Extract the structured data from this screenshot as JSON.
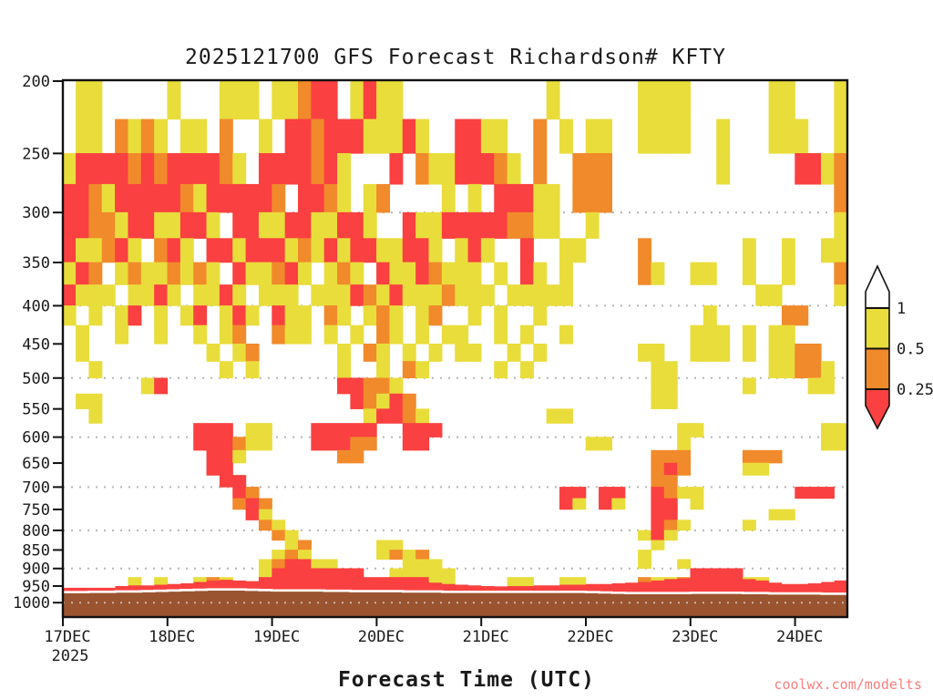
{
  "title": "2025121700 GFS Forecast Richardson# KFTY",
  "xlabel": "Forecast Time (UTC)",
  "watermark": "coolwx.com/modelts",
  "chart_data": {
    "type": "heatmap",
    "title": "2025121700 GFS Forecast Richardson# KFTY",
    "xlabel": "Forecast Time (UTC)",
    "x_axis": {
      "tick_labels": [
        "17DEC",
        "18DEC",
        "19DEC",
        "20DEC",
        "21DEC",
        "22DEC",
        "23DEC",
        "24DEC"
      ],
      "year_label": "2025",
      "start": "17DEC 00UTC",
      "end": "24DEC 12UTC",
      "step_hours": 3,
      "columns": 60,
      "cols_per_day": 8
    },
    "y_axis": {
      "scale": "log",
      "unit": "hPa",
      "tick_levels": [
        200,
        250,
        300,
        350,
        400,
        450,
        500,
        550,
        600,
        650,
        700,
        750,
        800,
        850,
        900,
        950,
        1000
      ],
      "top_hpa": 200,
      "bottom_hpa": 1040,
      "gridline_levels": [
        300,
        400,
        500,
        600,
        700,
        800,
        900,
        1000
      ]
    },
    "legend": {
      "tick_labels": [
        "1",
        "0.5",
        "0.25"
      ],
      "band_meaning": [
        "Ri > 1 (white)",
        "0.5 - 1 (yellow)",
        "0.25 - 0.5 (orange)",
        "Ri < 0.25 (red)"
      ],
      "colors": {
        "above": "#ffffff",
        "high": "#e9dd3c",
        "mid": "#f18a2b",
        "low": "#fa4040"
      }
    },
    "cell_top_hpa": 200,
    "cell_dp_hpa": 25,
    "rows": 31,
    "code_map": {
      "0": "none",
      "1": "yellow 0.5-1",
      "2": "orange 0.25-0.5",
      "3": "red <0.25"
    },
    "grid": [
      "011000001000111011233013110000000000010000001111000000110001",
      "011021210110200103323331113100331100201011001111001000111001",
      "133332323333210333323100030211333210200222000000001000003312",
      "332133333213333320332101200001010333110222000000000000000002",
      "332213311331033113311331003113333322110010000000000000000001",
      "311231023103313331213133113310131003001100002000000010010011",
      "132012112121031123101210311321110103101000002100110010010002",
      "311101131011310111011132131112111011111000000000000001100001",
      "101013010130131031102101210120010100100000000000010000022000",
      "010010010010120021101010210101100101001000000000111010110000",
      "010000000001012000000102101010110010100000001100111010112200",
      "001000000000101000000100102100000101000000000110000000112210",
      "000000130000000000000332210000000000000000000110000010000110",
      "011000000000000000000032132000000000000000000110000000000000",
      "001000000000000000000001332100000000011000000000000000000000",
      "000000000033301100033333003330000000000000000001100000000011",
      "000000000033321100033322003300000000000011000001000000000011",
      "000000000003310000000220000000000000000000000222000022200000",
      "000000000003300000000000000000000000000000000232000011000000",
      "000000000000330000000000000000000000000000000220000000000000",
      "000000000000032000000000000000000000003303300321100000003330",
      "000000000000023200000000000000000000003103100330100000000000",
      "000000000000003100000000000000000000000000000330000000110000",
      "000000000000000210000000000000000000000000000321000010000000",
      "000000000000000021000000000000000000000000001310000000000000",
      "000000000000000001200000110000000000000000000100000000000000",
      "000000000000000012100000121200000000000000001000000000000000",
      "000000000000000123311000001110000000000000001001000000000000",
      "000000000000000133333330011111000000000000000000333300000000",
      "000001010012100333333333333311000011001100002112333311000000",
      "000000000000000000000000000000000000000000000000000000000000"
    ],
    "surface_layer_top_hpa": [
      955,
      955,
      955,
      955,
      950,
      948,
      948,
      946,
      944,
      942,
      938,
      934,
      932,
      934,
      936,
      934,
      930,
      924,
      922,
      925,
      930,
      934,
      938,
      938,
      936,
      934,
      934,
      936,
      940,
      944,
      946,
      948,
      950,
      951,
      950,
      950,
      948,
      948,
      946,
      946,
      944,
      944,
      942,
      940,
      938,
      934,
      930,
      928,
      926,
      924,
      924,
      926,
      930,
      934,
      940,
      944,
      944,
      942,
      938,
      934
    ],
    "terrain_top_hpa": [
      968,
      968,
      967,
      967,
      966,
      966,
      965,
      964,
      963,
      962,
      961,
      960,
      960,
      960,
      961,
      962,
      963,
      963,
      963,
      963,
      964,
      964,
      965,
      965,
      965,
      965,
      966,
      966,
      966,
      967,
      967,
      967,
      967,
      967,
      967,
      967,
      967,
      967,
      967,
      967,
      968,
      969,
      970,
      971,
      971,
      971,
      971,
      971,
      970,
      970,
      970,
      970,
      971,
      971,
      972,
      972,
      972,
      972,
      973,
      973
    ],
    "terrain_color": "#9b5430"
  }
}
